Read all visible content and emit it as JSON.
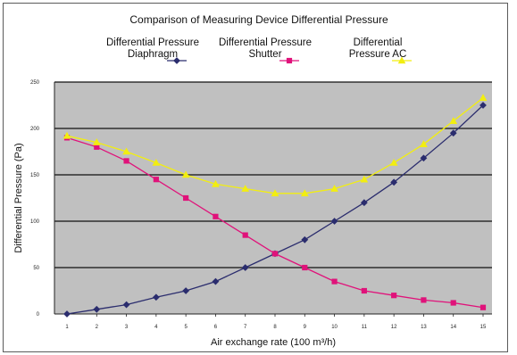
{
  "chart_data": {
    "type": "line",
    "title": "Comparison of Measuring Device Differential Pressure",
    "xlabel": "Air exchange rate (100 m³/h)",
    "ylabel": "Differential Pressure (Pa)",
    "x": [
      1,
      2,
      3,
      4,
      5,
      6,
      7,
      8,
      9,
      10,
      11,
      12,
      13,
      14,
      15
    ],
    "xticks": [
      "1",
      "2",
      "3",
      "4",
      "5",
      "6",
      "7",
      "8",
      "9",
      "10",
      "11",
      "12",
      "13",
      "14",
      "15"
    ],
    "ylim": [
      0,
      250
    ],
    "yticks": [
      "0",
      "50",
      "100",
      "150",
      "200",
      "250"
    ],
    "grid": true,
    "legend_position": "top",
    "plot_background": "#c0c0c0",
    "series": [
      {
        "name_lines": [
          "Differential Pressure",
          "Diaphragm"
        ],
        "color": "#2b2d6e",
        "marker": "diamond",
        "values": [
          0,
          5,
          10,
          18,
          25,
          35,
          50,
          65,
          80,
          100,
          120,
          142,
          168,
          195,
          225
        ]
      },
      {
        "name_lines": [
          "Differential Pressure",
          "Shutter"
        ],
        "color": "#e0127a",
        "marker": "square",
        "values": [
          190,
          180,
          165,
          145,
          125,
          105,
          85,
          65,
          50,
          35,
          25,
          20,
          15,
          12,
          7
        ]
      },
      {
        "name_lines": [
          "Differential",
          "Pressure AC"
        ],
        "color": "#f2ee10",
        "marker": "triangle",
        "values": [
          192,
          185,
          175,
          163,
          150,
          140,
          135,
          130,
          130,
          135,
          145,
          163,
          183,
          208,
          233
        ]
      }
    ]
  }
}
